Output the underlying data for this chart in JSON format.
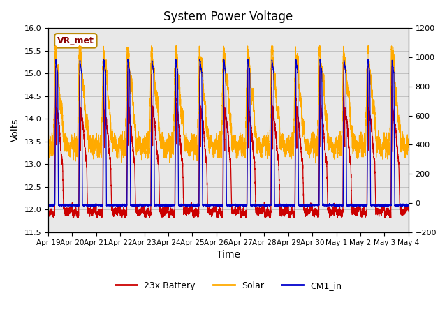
{
  "title": "System Power Voltage",
  "xlabel": "Time",
  "ylabel": "Volts",
  "ylim_left": [
    11.5,
    16.0
  ],
  "ylim_right": [
    -200,
    1200
  ],
  "yticks_left": [
    11.5,
    12.0,
    12.5,
    13.0,
    13.5,
    14.0,
    14.5,
    15.0,
    15.5,
    16.0
  ],
  "yticks_right": [
    -200,
    0,
    200,
    400,
    600,
    800,
    1000,
    1200
  ],
  "xtick_labels": [
    "Apr 19",
    "Apr 20",
    "Apr 21",
    "Apr 22",
    "Apr 23",
    "Apr 24",
    "Apr 25",
    "Apr 26",
    "Apr 27",
    "Apr 28",
    "Apr 29",
    "Apr 30",
    "May 1",
    "May 2",
    "May 3",
    "May 4"
  ],
  "legend": [
    {
      "label": "23x Battery",
      "color": "#cc0000"
    },
    {
      "label": "Solar",
      "color": "#ffaa00"
    },
    {
      "label": "CM1_in",
      "color": "#0000cc"
    }
  ],
  "annotation_box": "VR_met",
  "shaded_color": "#e8e8e8",
  "grid_color": "#bbbbbb"
}
